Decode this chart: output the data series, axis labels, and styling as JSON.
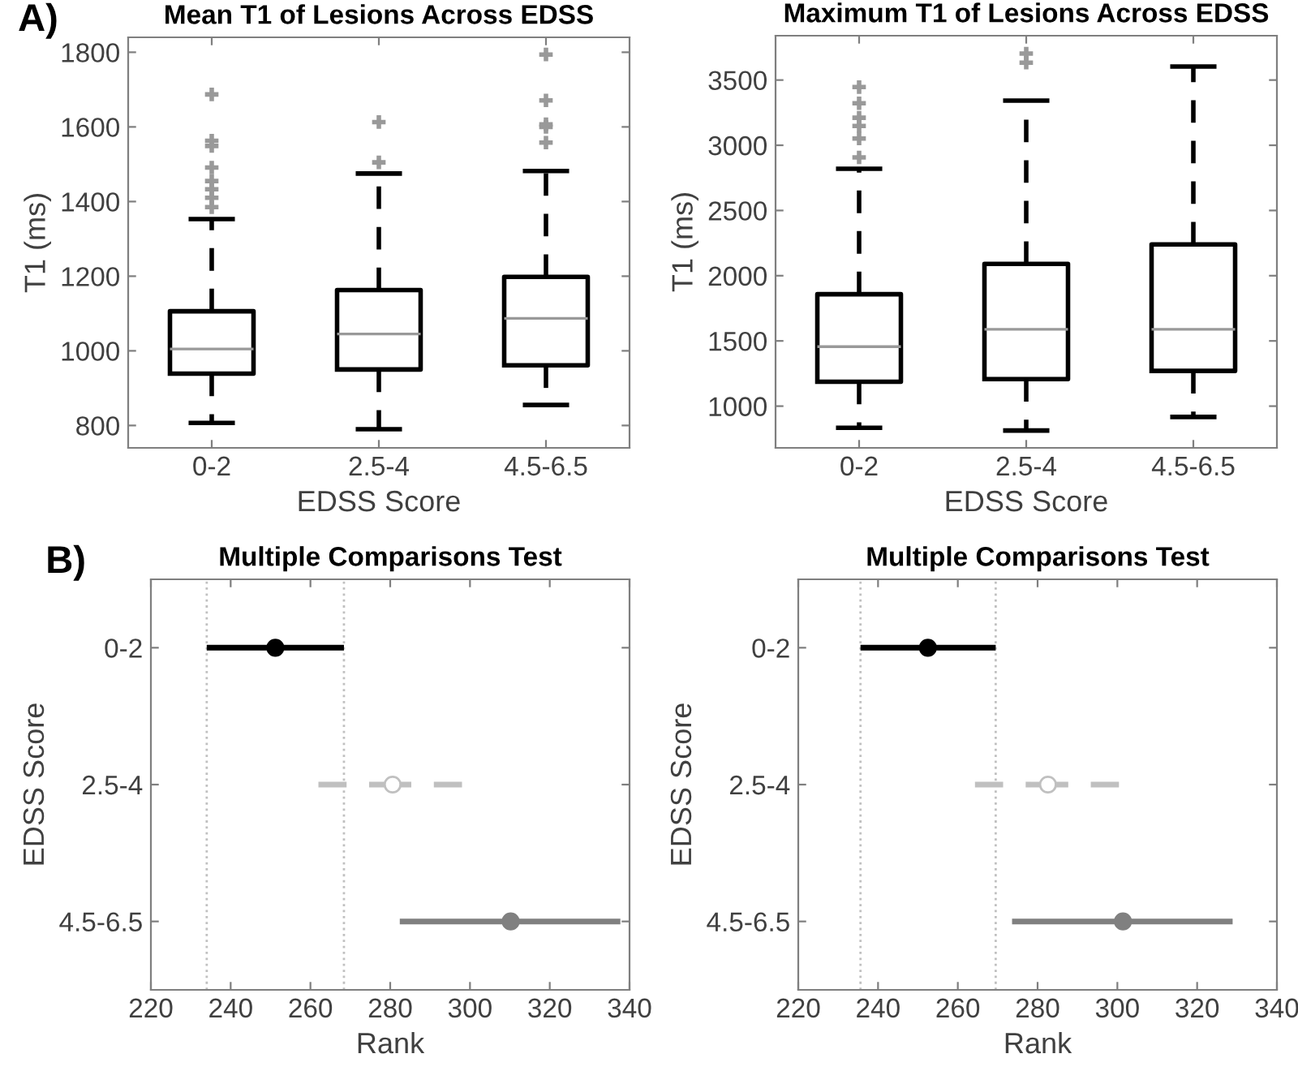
{
  "chart_data": [
    {
      "type": "box",
      "title": "Mean T1 of Lesions Across EDSS",
      "xlabel": "EDSS Score",
      "ylabel": "T1 (ms)",
      "annotations": [
        "A)"
      ],
      "categories": [
        "0-2",
        "2.5-4",
        "4.5-6.5"
      ],
      "ylim": [
        740,
        1840
      ],
      "yticks": [
        800,
        1000,
        1200,
        1400,
        1600,
        1800
      ],
      "grid": false,
      "marker": "cross",
      "line_style": "dashed",
      "series": [
        {
          "color": "#000000",
          "boxes": [
            {
              "low": 807,
              "q1": 939,
              "median": 1005,
              "q3": 1106,
              "high": 1353,
              "outliers": [
                1385,
                1410,
                1433,
                1455,
                1491,
                1549,
                1563,
                1687
              ]
            },
            {
              "low": 790,
              "q1": 950,
              "median": 1045,
              "q3": 1163,
              "high": 1475,
              "outliers": [
                1505,
                1613
              ]
            },
            {
              "low": 855,
              "q1": 961,
              "median": 1087,
              "q3": 1198,
              "high": 1482,
              "outliers": [
                1558,
                1600,
                1607,
                1671,
                1794
              ]
            }
          ]
        }
      ]
    },
    {
      "type": "box",
      "title": "Maximum T1 of Lesions Across EDSS",
      "xlabel": "EDSS Score",
      "ylabel": "T1 (ms)",
      "categories": [
        "0-2",
        "2.5-4",
        "4.5-6.5"
      ],
      "ylim": [
        680,
        3840
      ],
      "yticks": [
        1000,
        1500,
        2000,
        2500,
        3000,
        3500
      ],
      "grid": false,
      "marker": "cross",
      "line_style": "dashed",
      "series": [
        {
          "color": "#000000",
          "boxes": [
            {
              "low": 834,
              "q1": 1187,
              "median": 1456,
              "q3": 1858,
              "high": 2820,
              "outliers": [
                2907,
                3052,
                3148,
                3211,
                3322,
                3446
              ]
            },
            {
              "low": 813,
              "q1": 1207,
              "median": 1589,
              "q3": 2090,
              "high": 3342,
              "outliers": [
                3633,
                3703
              ]
            },
            {
              "low": 917,
              "q1": 1270,
              "median": 1589,
              "q3": 2240,
              "high": 3604
            }
          ]
        }
      ]
    },
    {
      "type": "scatter",
      "orientation": "horizontal",
      "title": "Multiple Comparisons Test",
      "xlabel": "Rank",
      "ylabel": "EDSS Score",
      "annotations": [
        "B)"
      ],
      "categories": [
        "0-2",
        "2.5-4",
        "4.5-6.5"
      ],
      "xlim": [
        220,
        340
      ],
      "xticks": [
        220,
        240,
        260,
        280,
        300,
        320,
        340
      ],
      "grid": false,
      "marker": "circle",
      "ref_lines": [
        {
          "axis": "x",
          "value": 234,
          "label": null,
          "color": "#c0c0c0",
          "line_style": "dotted"
        },
        {
          "axis": "x",
          "value": 268.4,
          "label": null,
          "color": "#c0c0c0",
          "line_style": "dotted"
        }
      ],
      "series": [
        {
          "color": "#000000",
          "line_style": "solid",
          "values": [
            251.2,
            null,
            null
          ],
          "errors": [
            [
              234,
              268.4
            ],
            null,
            null
          ]
        },
        {
          "color": "#c0c0c0",
          "line_style": "dashed",
          "values": [
            null,
            280.6,
            null
          ],
          "errors": [
            null,
            [
              262,
              298
            ],
            null
          ]
        },
        {
          "color": "#808080",
          "line_style": "solid",
          "values": [
            null,
            null,
            310.2
          ],
          "errors": [
            null,
            null,
            [
              282.4,
              337.7
            ]
          ]
        }
      ]
    },
    {
      "type": "scatter",
      "orientation": "horizontal",
      "title": "Multiple Comparisons Test",
      "xlabel": "Rank",
      "ylabel": "EDSS Score",
      "categories": [
        "0-2",
        "2.5-4",
        "4.5-6.5"
      ],
      "xlim": [
        220,
        340
      ],
      "xticks": [
        220,
        240,
        260,
        280,
        300,
        320,
        340
      ],
      "grid": false,
      "marker": "circle",
      "ref_lines": [
        {
          "axis": "x",
          "value": 235.6,
          "label": null,
          "color": "#c0c0c0",
          "line_style": "dotted"
        },
        {
          "axis": "x",
          "value": 269.5,
          "label": null,
          "color": "#c0c0c0",
          "line_style": "dotted"
        }
      ],
      "series": [
        {
          "color": "#000000",
          "line_style": "solid",
          "values": [
            252.5,
            null,
            null
          ],
          "errors": [
            [
              235.6,
              269.5
            ],
            null,
            null
          ]
        },
        {
          "color": "#c0c0c0",
          "line_style": "dashed",
          "values": [
            null,
            282.6,
            null
          ],
          "errors": [
            null,
            [
              264.3,
              300.4
            ],
            null
          ]
        },
        {
          "color": "#808080",
          "line_style": "solid",
          "values": [
            null,
            null,
            301.4
          ],
          "errors": [
            null,
            null,
            [
              273.6,
              328.9
            ]
          ]
        }
      ]
    }
  ]
}
